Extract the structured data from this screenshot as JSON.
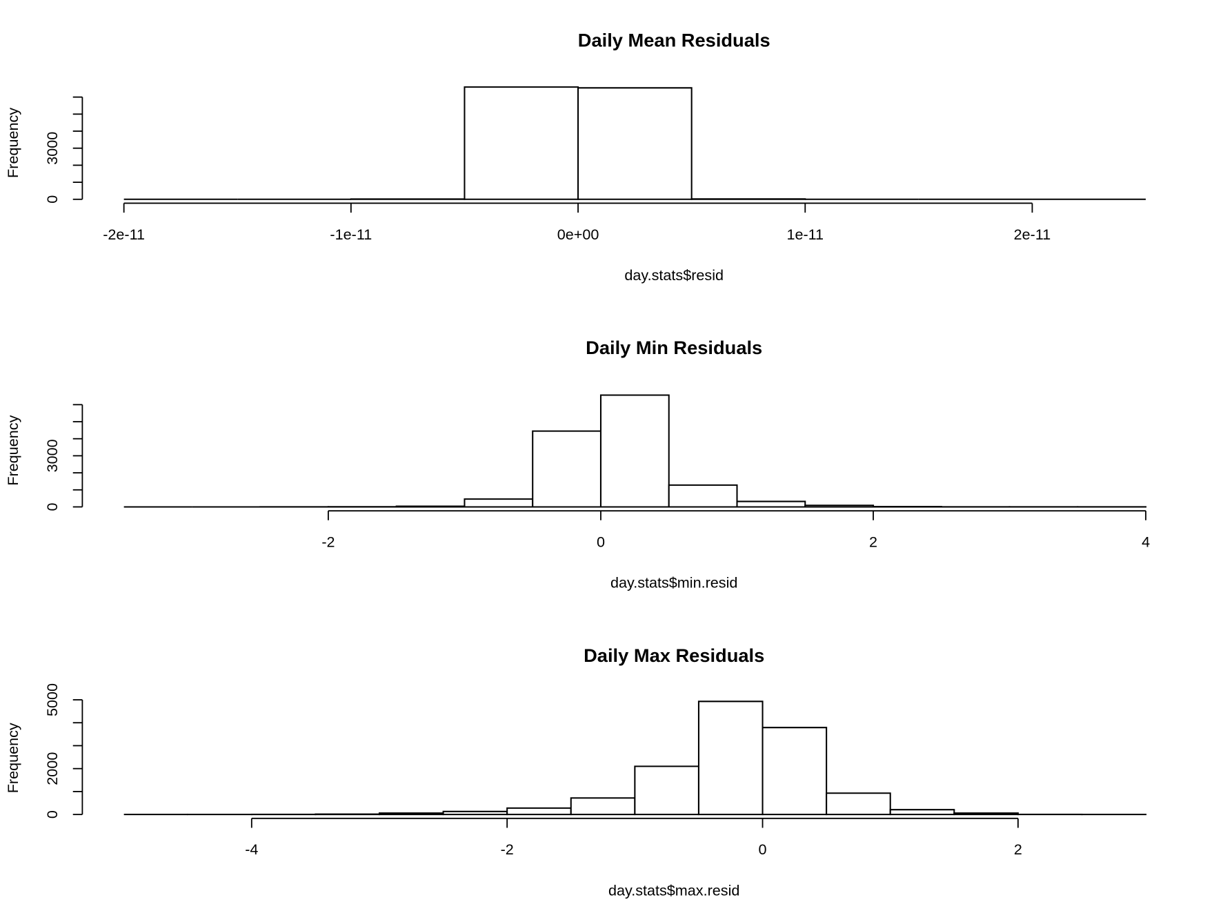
{
  "chart_data": [
    {
      "type": "histogram",
      "title": "Daily Mean Residuals",
      "x_label": "day.stats$resid",
      "y_label": "Frequency",
      "bins": [
        -2e-11,
        -1.5e-11,
        -1e-11,
        -5e-12,
        0,
        5e-12,
        1e-11,
        1.5e-11,
        2e-11,
        2.5e-11
      ],
      "values": [
        0,
        0,
        15,
        6590,
        6540,
        20,
        0,
        0,
        0
      ],
      "color": "#ffffff",
      "edgecolor": "#000000",
      "xlim": [
        -2e-11,
        2.5e-11
      ],
      "ylim": [
        0,
        7000
      ],
      "xticks": [
        {
          "value": -2e-11,
          "label": "-2e-11"
        },
        {
          "value": -1e-11,
          "label": "-1e-11"
        },
        {
          "value": 0,
          "label": "0e+00"
        },
        {
          "value": 1e-11,
          "label": "1e-11"
        },
        {
          "value": 2e-11,
          "label": "2e-11"
        }
      ],
      "yticks": [
        0,
        {
          "value": 1000,
          "label": null
        },
        {
          "value": 2000,
          "label": null
        },
        3000,
        {
          "value": 4000,
          "label": null
        },
        {
          "value": 5000,
          "label": null
        },
        {
          "value": 6000,
          "label": null
        }
      ]
    },
    {
      "type": "histogram",
      "title": "Daily Min Residuals",
      "x_label": "day.stats$min.resid",
      "y_label": "Frequency",
      "bins": [
        -3.5,
        -3,
        -2.5,
        -2,
        -1.5,
        -1,
        -0.5,
        0,
        0.5,
        1,
        1.5,
        2,
        2.5,
        3,
        3.5,
        4
      ],
      "values": [
        0,
        0,
        3,
        10,
        40,
        460,
        4450,
        6560,
        1280,
        320,
        90,
        20,
        5,
        2,
        1
      ],
      "color": "#ffffff",
      "edgecolor": "#000000",
      "xlim": [
        -3.5,
        4
      ],
      "ylim": [
        0,
        7000
      ],
      "xticks": [
        -2,
        0,
        2,
        4
      ],
      "yticks": [
        0,
        {
          "value": 1000,
          "label": null
        },
        {
          "value": 2000,
          "label": null
        },
        3000,
        {
          "value": 4000,
          "label": null
        },
        {
          "value": 5000,
          "label": null
        },
        {
          "value": 6000,
          "label": null
        }
      ]
    },
    {
      "type": "histogram",
      "title": "Daily Max Residuals",
      "x_label": "day.stats$max.resid",
      "y_label": "Frequency",
      "bins": [
        -5,
        -4.5,
        -4,
        -3.5,
        -3,
        -2.5,
        -2,
        -1.5,
        -1,
        -0.5,
        0,
        0.5,
        1,
        1.5,
        2,
        2.5,
        3
      ],
      "values": [
        0,
        2,
        5,
        15,
        60,
        130,
        280,
        720,
        2100,
        4930,
        3790,
        930,
        210,
        60,
        5,
        1
      ],
      "color": "#ffffff",
      "edgecolor": "#000000",
      "xlim": [
        -5,
        3
      ],
      "ylim": [
        0,
        5200
      ],
      "xticks": [
        -4,
        -2,
        0,
        2
      ],
      "yticks": [
        0,
        {
          "value": 1000,
          "label": null
        },
        2000,
        {
          "value": 3000,
          "label": null
        },
        {
          "value": 4000,
          "label": null
        },
        5000
      ]
    }
  ]
}
